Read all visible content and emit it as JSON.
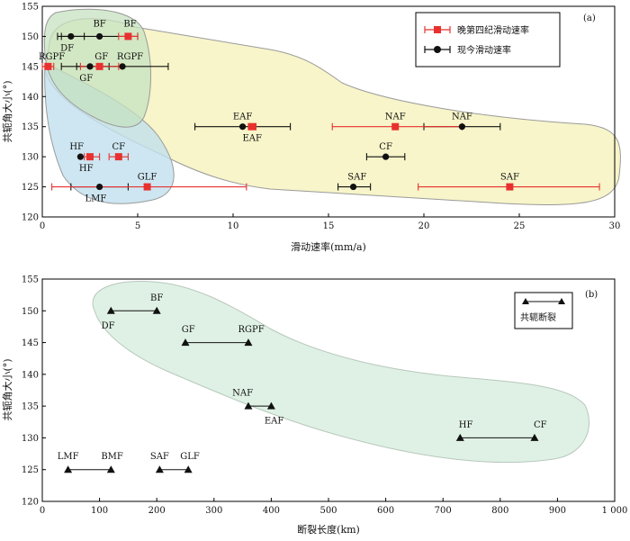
{
  "chart_data": [
    {
      "type": "scatter",
      "panel_label": "(a)",
      "xlabel": "滑动速率(mm/a)",
      "ylabel": "共轭角大小(°)",
      "xlim": [
        0,
        30
      ],
      "ylim": [
        120,
        155
      ],
      "xticks": [
        "0",
        "5",
        "10",
        "15",
        "20",
        "25",
        "30"
      ],
      "yticks": [
        "120",
        "125",
        "130",
        "135",
        "140",
        "145",
        "150",
        "155"
      ],
      "grid": false,
      "legend_position": "top-right",
      "colors": {
        "late_quaternary": "#e8312f",
        "present": "#111111",
        "yellow_region": "#f6f3c0",
        "blue_region": "#c8e4ef",
        "green_region": "#cfe6c9"
      },
      "series": [
        {
          "name": "晚第四纪滑动速率",
          "marker": "square",
          "points": [
            {
              "label": "BF",
              "x": 4.5,
              "y": 150,
              "xerr": [
                4.0,
                5.0
              ]
            },
            {
              "label": "RGPF",
              "x": 0.3,
              "y": 145,
              "xerr": [
                0,
                0.6
              ]
            },
            {
              "label": "GF",
              "x": 3.0,
              "y": 145,
              "xerr": [
                2.0,
                4.0
              ]
            },
            {
              "label": "EAF",
              "x": 11.0,
              "y": 135,
              "xerr": [
                10.8,
                11.2
              ]
            },
            {
              "label": "NAF",
              "x": 18.5,
              "y": 135,
              "xerr": [
                15.2,
                22.0
              ]
            },
            {
              "label": "HF",
              "x": 2.5,
              "y": 130,
              "xerr": [
                2.2,
                3.0
              ]
            },
            {
              "label": "CF",
              "x": 4.0,
              "y": 130,
              "xerr": [
                3.5,
                4.5
              ]
            },
            {
              "label": "GLF",
              "x": 5.5,
              "y": 125,
              "xerr": [
                0.5,
                10.7
              ]
            },
            {
              "label": "SAF",
              "x": 24.5,
              "y": 125,
              "xerr": [
                19.7,
                29.2
              ]
            }
          ]
        },
        {
          "name": "现今滑动速率",
          "marker": "circle",
          "points": [
            {
              "label": "DF",
              "x": 1.5,
              "y": 150,
              "xerr": [
                0.8,
                2.2
              ]
            },
            {
              "label": "BF",
              "x": 3.0,
              "y": 150,
              "xerr": [
                1.0,
                5.0
              ]
            },
            {
              "label": "GF",
              "x": 2.5,
              "y": 145,
              "xerr": [
                1.0,
                3.5
              ]
            },
            {
              "label": "RGPF",
              "x": 4.2,
              "y": 145,
              "xerr": [
                1.8,
                6.6
              ]
            },
            {
              "label": "EAF",
              "x": 10.5,
              "y": 135,
              "xerr": [
                8.0,
                13.0
              ]
            },
            {
              "label": "NAF",
              "x": 22.0,
              "y": 135,
              "xerr": [
                20.0,
                24.0
              ]
            },
            {
              "label": "HF",
              "x": 2.0,
              "y": 130,
              "xerr": [
                2.0,
                2.0
              ]
            },
            {
              "label": "CF",
              "x": 18.0,
              "y": 130,
              "xerr": [
                17.0,
                19.0
              ]
            },
            {
              "label": "LMF",
              "x": 3.0,
              "y": 125,
              "xerr": [
                1.5,
                4.5
              ]
            },
            {
              "label": "SAF",
              "x": 16.3,
              "y": 125,
              "xerr": [
                15.5,
                17.2
              ]
            }
          ]
        }
      ],
      "point_labels": [
        {
          "text": "BF",
          "x": 3.0,
          "y": 152.2
        },
        {
          "text": "BF",
          "x": 4.6,
          "y": 152.2
        },
        {
          "text": "DF",
          "x": 1.3,
          "y": 148.2
        },
        {
          "text": "RGPF",
          "x": 0.5,
          "y": 146.8
        },
        {
          "text": "GF",
          "x": 3.1,
          "y": 146.8
        },
        {
          "text": "RGPF",
          "x": 4.6,
          "y": 146.8
        },
        {
          "text": "GF",
          "x": 2.3,
          "y": 143.2
        },
        {
          "text": "EAF",
          "x": 10.5,
          "y": 136.8
        },
        {
          "text": "EAF",
          "x": 11.0,
          "y": 133.2
        },
        {
          "text": "NAF",
          "x": 18.5,
          "y": 136.8
        },
        {
          "text": "NAF",
          "x": 22.0,
          "y": 136.8
        },
        {
          "text": "HF",
          "x": 1.8,
          "y": 131.8
        },
        {
          "text": "CF",
          "x": 4.0,
          "y": 131.8
        },
        {
          "text": "HF",
          "x": 2.3,
          "y": 128.2
        },
        {
          "text": "CF",
          "x": 18.0,
          "y": 131.8
        },
        {
          "text": "GLF",
          "x": 5.5,
          "y": 126.8
        },
        {
          "text": "SAF",
          "x": 16.5,
          "y": 126.8
        },
        {
          "text": "SAF",
          "x": 24.5,
          "y": 126.8
        },
        {
          "text": "LMF",
          "x": 2.8,
          "y": 123.2
        }
      ]
    },
    {
      "type": "scatter",
      "panel_label": "(b)",
      "xlabel": "断裂长度(km)",
      "ylabel": "共轭角大小(°)",
      "xlim": [
        0,
        1000
      ],
      "ylim": [
        120,
        155
      ],
      "xticks": [
        "0",
        "100",
        "200",
        "300",
        "400",
        "500",
        "600",
        "700",
        "800",
        "900",
        "1 000"
      ],
      "yticks": [
        "120",
        "125",
        "130",
        "135",
        "140",
        "145",
        "150",
        "155"
      ],
      "grid": false,
      "legend_position": "top-right",
      "colors": {
        "marker": "#111111",
        "green_region": "#dcefe2"
      },
      "series": [
        {
          "name": "共轭断裂",
          "marker": "triangle",
          "pairs": [
            {
              "labels": [
                "DF",
                "BF"
              ],
              "x": [
                120,
                200
              ],
              "y": 150
            },
            {
              "labels": [
                "GF",
                "RGPF"
              ],
              "x": [
                250,
                360
              ],
              "y": 145
            },
            {
              "labels": [
                "NAF",
                "EAF"
              ],
              "x": [
                360,
                400
              ],
              "y": 135
            },
            {
              "labels": [
                "HF",
                "CF"
              ],
              "x": [
                730,
                860
              ],
              "y": 130
            },
            {
              "labels": [
                "LMF",
                "BMF"
              ],
              "x": [
                45,
                120
              ],
              "y": 125
            },
            {
              "labels": [
                "SAF",
                "GLF"
              ],
              "x": [
                205,
                255
              ],
              "y": 125
            }
          ]
        }
      ],
      "point_labels": [
        {
          "text": "BF",
          "x": 200,
          "y": 152.2
        },
        {
          "text": "DF",
          "x": 115,
          "y": 147.8
        },
        {
          "text": "GF",
          "x": 255,
          "y": 147.2
        },
        {
          "text": "RGPF",
          "x": 365,
          "y": 147.2
        },
        {
          "text": "NAF",
          "x": 350,
          "y": 137.2
        },
        {
          "text": "EAF",
          "x": 405,
          "y": 132.8
        },
        {
          "text": "HF",
          "x": 740,
          "y": 132.2
        },
        {
          "text": "CF",
          "x": 870,
          "y": 132.2
        },
        {
          "text": "LMF",
          "x": 45,
          "y": 127.2
        },
        {
          "text": "BMF",
          "x": 122,
          "y": 127.2
        },
        {
          "text": "SAF",
          "x": 205,
          "y": 127.2
        },
        {
          "text": "GLF",
          "x": 258,
          "y": 127.2
        }
      ]
    }
  ]
}
